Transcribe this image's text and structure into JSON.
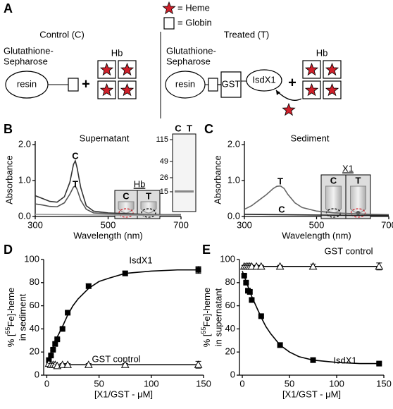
{
  "diagram": {
    "panel": "A",
    "legend": [
      "= Heme",
      "= Globin"
    ],
    "control": {
      "title": "Control (C)",
      "support": [
        "Glutathione-",
        "Sepharose"
      ],
      "resin": "resin",
      "plus": "+",
      "hb": "Hb"
    },
    "treated": {
      "title": "Treated (T)",
      "support": [
        "Glutathione-",
        "Sepharose"
      ],
      "resin": "resin",
      "tag": "GST",
      "protein": "IsdX1",
      "plus": "+",
      "hb": "Hb"
    }
  },
  "chart_data": [
    {
      "type": "line",
      "panel": "B",
      "title": "Supernatant",
      "ylabel": "Absorbance",
      "xlabel": "Wavelength (nm)",
      "xlim": [
        300,
        700
      ],
      "ylim": [
        0,
        2.1
      ],
      "xticks": [
        300,
        500,
        700
      ],
      "yticks": [
        {
          "value": 0,
          "label": "0.0"
        },
        {
          "value": 1,
          "label": "1.0"
        },
        {
          "value": 2,
          "label": "2.0"
        }
      ],
      "series": [
        {
          "name": "C",
          "color": "#333333",
          "x": [
            300,
            320,
            340,
            360,
            380,
            395,
            405,
            410,
            415,
            425,
            440,
            460,
            500,
            550,
            600,
            650,
            700
          ],
          "values": [
            0.58,
            0.5,
            0.42,
            0.4,
            0.55,
            0.95,
            1.45,
            1.55,
            1.35,
            0.8,
            0.3,
            0.15,
            0.1,
            0.08,
            0.06,
            0.05,
            0.05
          ]
        },
        {
          "name": "T",
          "color": "#555555",
          "x": [
            300,
            320,
            340,
            360,
            380,
            395,
            405,
            410,
            415,
            425,
            440,
            460,
            500,
            550,
            600,
            650,
            700
          ],
          "values": [
            0.35,
            0.32,
            0.28,
            0.27,
            0.38,
            0.62,
            0.82,
            0.85,
            0.75,
            0.45,
            0.2,
            0.1,
            0.08,
            0.06,
            0.05,
            0.04,
            0.04
          ]
        },
        {
          "color": "#999999",
          "x": [
            300,
            500,
            700
          ],
          "values": [
            0.06,
            0.04,
            0.03
          ]
        }
      ],
      "inset": {
        "title": "Hb",
        "lanes": [
          "C",
          "T"
        ]
      },
      "gel": {
        "lanes": [
          "C",
          "T"
        ],
        "markers": [
          115,
          49,
          26,
          15
        ]
      }
    },
    {
      "type": "line",
      "panel": "C",
      "title": "Sediment",
      "ylabel": "Absorbance",
      "xlabel": "Wavelength (nm)",
      "xlim": [
        300,
        700
      ],
      "ylim": [
        0,
        2.1
      ],
      "xticks": [
        300,
        500,
        700
      ],
      "yticks": [
        {
          "value": 0,
          "label": "0.0"
        },
        {
          "value": 1,
          "label": "1.0"
        },
        {
          "value": 2,
          "label": "2.0"
        }
      ],
      "series": [
        {
          "name": "T",
          "color": "#666666",
          "x": [
            300,
            320,
            340,
            360,
            380,
            390,
            400,
            410,
            420,
            440,
            460,
            500,
            550,
            600,
            650,
            700
          ],
          "values": [
            0.2,
            0.3,
            0.45,
            0.6,
            0.78,
            0.84,
            0.85,
            0.78,
            0.62,
            0.38,
            0.25,
            0.15,
            0.1,
            0.08,
            0.06,
            0.05
          ]
        },
        {
          "name": "C",
          "color": "#222222",
          "x": [
            300,
            400,
            500,
            600,
            700
          ],
          "values": [
            0.06,
            0.05,
            0.04,
            0.03,
            0.03
          ]
        }
      ],
      "inset": {
        "title": "X1",
        "lanes": [
          "C",
          "T"
        ]
      }
    },
    {
      "type": "scatter",
      "panel": "D",
      "ylabel": [
        [
          "% [",
          "55",
          "Fe]-heme"
        ],
        "in sediment"
      ],
      "xlabel": "[X1/GST - μM]",
      "xlim": [
        -3,
        150
      ],
      "ylim": [
        0,
        100
      ],
      "xticks": [
        0,
        50,
        100,
        150
      ],
      "yticks": [
        0,
        20,
        40,
        60,
        80,
        100
      ],
      "series": [
        {
          "color": "#000000",
          "x": [
            0,
            5,
            10,
            15,
            20,
            25,
            30,
            40,
            50,
            60,
            75,
            100,
            125,
            145
          ],
          "values": [
            10,
            22,
            33,
            42,
            52,
            60,
            66,
            75,
            81,
            84,
            88,
            90,
            91,
            91
          ]
        },
        {
          "name": "IsdX1",
          "marker": "square",
          "color": "#000000",
          "x": [
            2,
            4,
            6,
            8,
            10,
            15,
            20,
            40,
            75,
            145
          ],
          "values": [
            13,
            17,
            22,
            27,
            31,
            40,
            54,
            77,
            88,
            91
          ],
          "errors": [
            1,
            1,
            1,
            1,
            1,
            1,
            1,
            2,
            2,
            3
          ]
        },
        {
          "color": "#000000",
          "x": [
            0,
            145
          ],
          "values": [
            9,
            9
          ]
        },
        {
          "name": "GST control",
          "marker": "triangle",
          "color": "#000000",
          "x": [
            2,
            4,
            6,
            8,
            10,
            15,
            20,
            40,
            75,
            145
          ],
          "values": [
            10,
            9,
            9,
            9,
            8,
            9,
            9,
            9,
            9,
            9
          ],
          "errors": [
            1,
            1,
            1,
            1,
            1,
            1,
            1,
            1,
            1,
            3
          ]
        }
      ]
    },
    {
      "type": "scatter",
      "panel": "E",
      "ylabel": [
        [
          "% [",
          "55",
          "Fe]-heme"
        ],
        "in supernatant"
      ],
      "xlabel": "[X1/GST - μM]",
      "xlim": [
        -3,
        150
      ],
      "ylim": [
        0,
        100
      ],
      "xticks": [
        0,
        50,
        100,
        150
      ],
      "yticks": [
        0,
        20,
        40,
        60,
        80,
        100
      ],
      "series": [
        {
          "color": "#000000",
          "x": [
            0,
            145
          ],
          "values": [
            94,
            94
          ]
        },
        {
          "name": "GST control",
          "marker": "triangle",
          "color": "#000000",
          "x": [
            2,
            4,
            6,
            8,
            10,
            15,
            20,
            40,
            75,
            145
          ],
          "values": [
            94,
            94,
            94,
            94,
            94,
            94,
            94,
            94,
            94,
            94
          ],
          "errors": [
            1,
            1,
            1,
            1,
            1,
            1,
            1,
            1,
            2,
            3
          ]
        },
        {
          "color": "#000000",
          "x": [
            0,
            5,
            10,
            15,
            20,
            25,
            30,
            40,
            50,
            60,
            75,
            100,
            125,
            145
          ],
          "values": [
            90,
            79,
            68,
            59,
            50,
            42,
            36,
            26,
            20,
            16,
            13,
            11,
            10,
            10
          ]
        },
        {
          "name": "IsdX1",
          "marker": "square",
          "color": "#000000",
          "x": [
            2,
            4,
            6,
            8,
            10,
            20,
            40,
            75,
            145
          ],
          "values": [
            86,
            80,
            73,
            72,
            65,
            51,
            26,
            13,
            10
          ],
          "errors": [
            1,
            1,
            1,
            1,
            1,
            1,
            2,
            2,
            1
          ]
        }
      ]
    }
  ]
}
